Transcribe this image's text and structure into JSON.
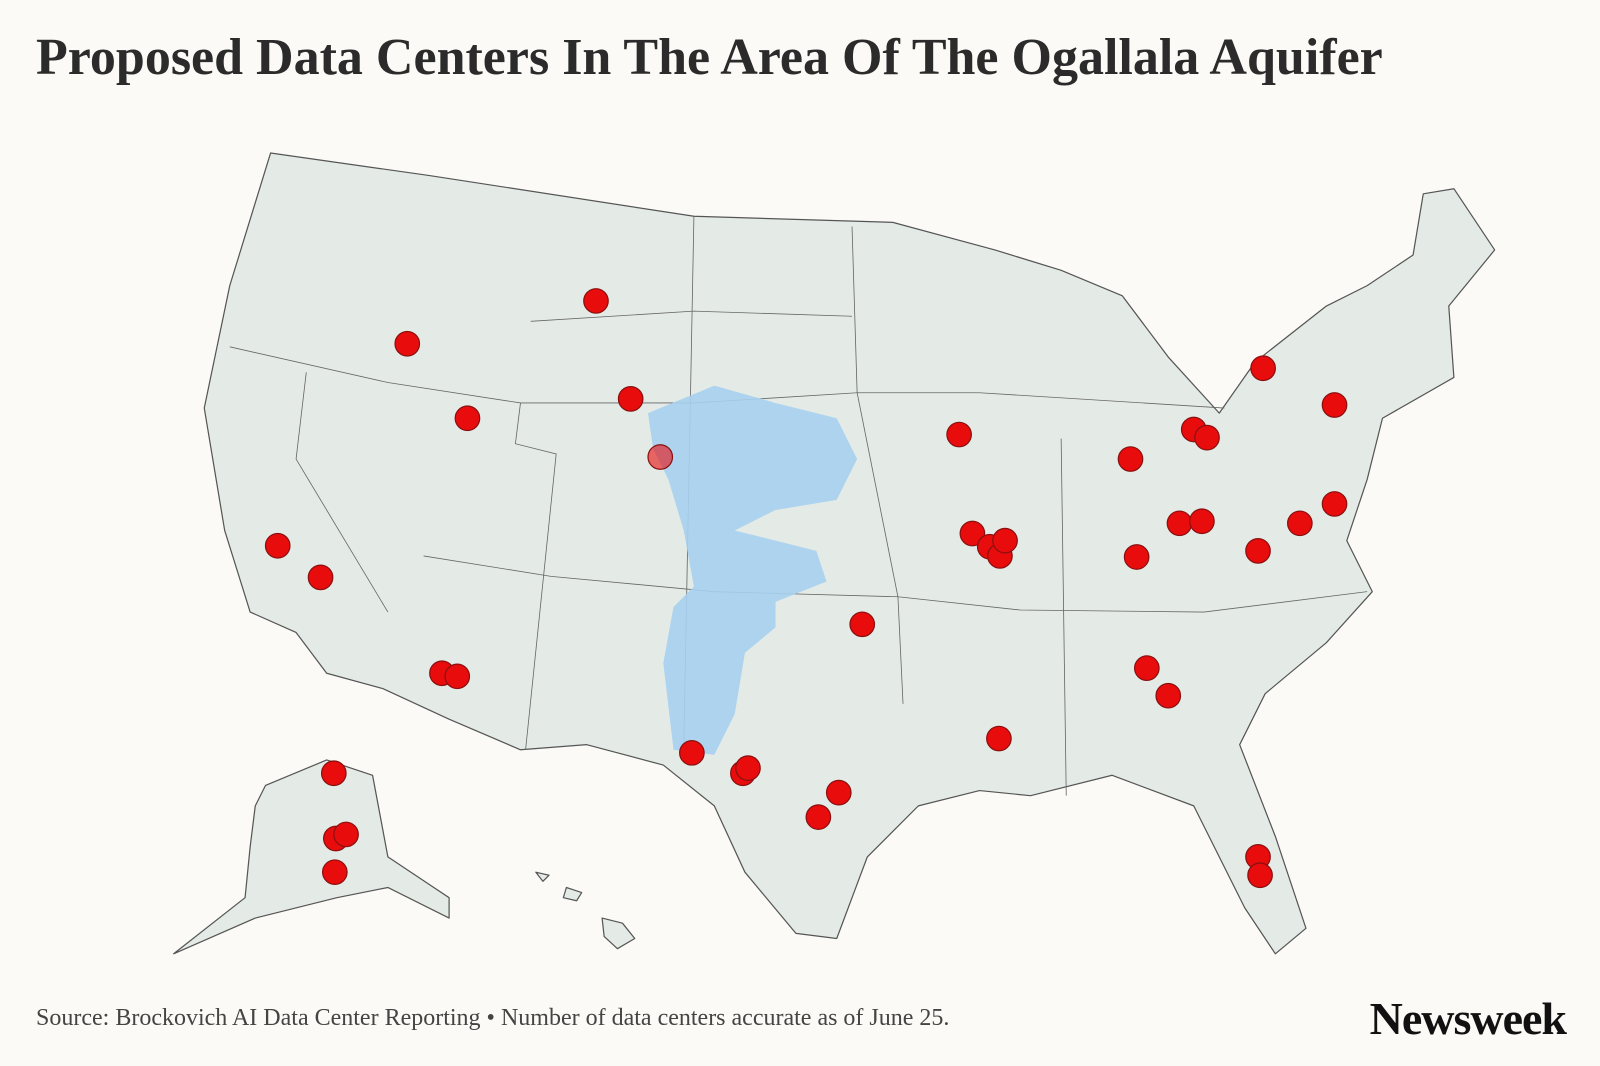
{
  "header": {
    "title": "Proposed Data Centers In The Area Of The Ogallala Aquifer"
  },
  "footer": {
    "source": "Source: Brockovich AI Data Center Reporting • Number of data centers accurate as of June 25.",
    "logo": "Newsweek"
  }
}
